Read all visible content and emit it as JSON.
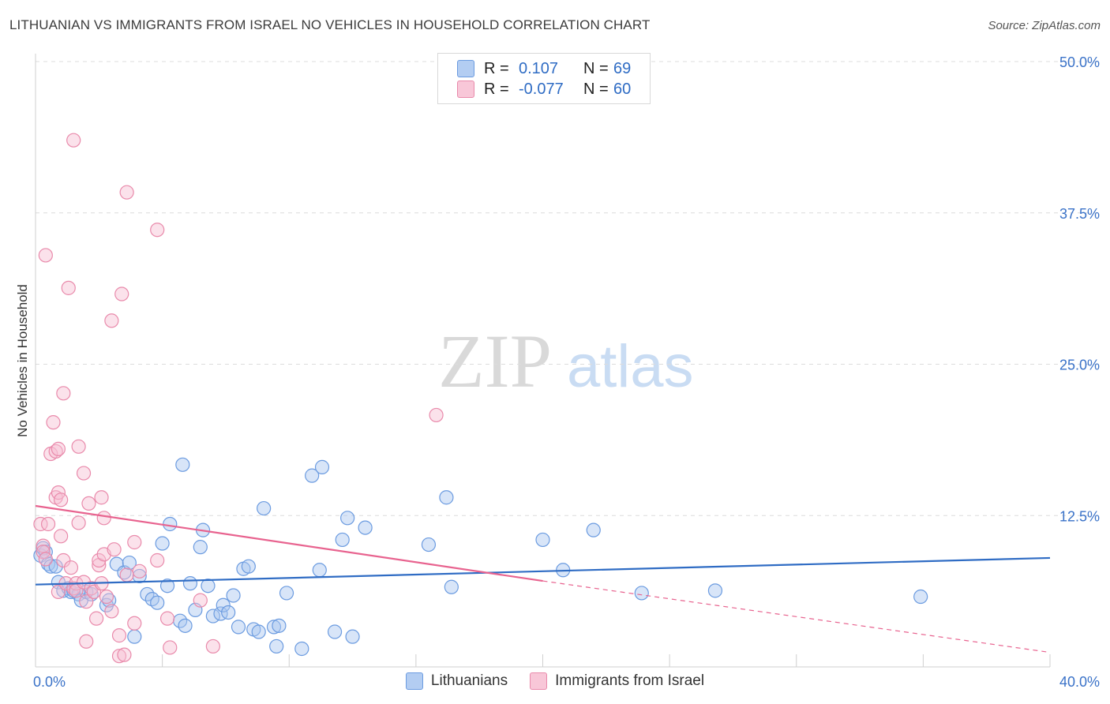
{
  "title": "LITHUANIAN VS IMMIGRANTS FROM ISRAEL NO VEHICLES IN HOUSEHOLD CORRELATION CHART",
  "source": "Source: ZipAtlas.com",
  "watermark": {
    "zip": "ZIP",
    "atlas": "atlas"
  },
  "legend": {
    "r_label": "R =",
    "n_label": "N =",
    "series": [
      {
        "name": "Lithuanians",
        "r": "0.107",
        "n": "69",
        "fill": "#a9c6f0",
        "stroke": "#6b9be0"
      },
      {
        "name": "Immigrants from Israel",
        "r": "-0.077",
        "n": "60",
        "fill": "#f7bfd2",
        "stroke": "#e98aab"
      }
    ]
  },
  "colors": {
    "blue": "#2f6cc4",
    "pink": "#e8638f",
    "grid": "#dcdcdc",
    "tick_text": "#3a72c8"
  },
  "chart_data": {
    "type": "scatter",
    "title": "LITHUANIAN VS IMMIGRANTS FROM ISRAEL NO VEHICLES IN HOUSEHOLD CORRELATION CHART",
    "xlabel": "",
    "ylabel": "No Vehicles in Household",
    "xlim": [
      0,
      40
    ],
    "ylim": [
      0,
      50
    ],
    "x_tick_labels": [
      "0.0%",
      "40.0%"
    ],
    "y_ticks": [
      12.5,
      25.0,
      37.5,
      50.0
    ],
    "y_tick_labels": [
      "12.5%",
      "25.0%",
      "37.5%",
      "50.0%"
    ],
    "series": [
      {
        "name": "Lithuanians",
        "trend": {
          "x0": 0,
          "y0": 6.8,
          "x1": 40,
          "y1": 9.0
        },
        "points": [
          [
            0.2,
            9.2
          ],
          [
            0.3,
            9.8
          ],
          [
            0.4,
            9.5
          ],
          [
            0.5,
            8.5
          ],
          [
            0.6,
            8.3
          ],
          [
            0.8,
            8.3
          ],
          [
            0.9,
            7.0
          ],
          [
            1.1,
            6.3
          ],
          [
            1.3,
            6.5
          ],
          [
            1.4,
            6.2
          ],
          [
            1.5,
            6.3
          ],
          [
            1.7,
            6.0
          ],
          [
            1.8,
            5.5
          ],
          [
            2.0,
            6.2
          ],
          [
            2.2,
            6.0
          ],
          [
            2.8,
            5.1
          ],
          [
            2.9,
            5.5
          ],
          [
            3.2,
            8.5
          ],
          [
            3.5,
            7.8
          ],
          [
            3.7,
            8.6
          ],
          [
            3.9,
            2.5
          ],
          [
            4.1,
            7.5
          ],
          [
            4.4,
            6.0
          ],
          [
            4.6,
            5.6
          ],
          [
            4.8,
            5.3
          ],
          [
            5.0,
            10.2
          ],
          [
            5.2,
            6.7
          ],
          [
            5.3,
            11.8
          ],
          [
            5.7,
            3.8
          ],
          [
            5.8,
            16.7
          ],
          [
            5.9,
            3.4
          ],
          [
            6.1,
            6.9
          ],
          [
            6.3,
            4.7
          ],
          [
            6.5,
            9.9
          ],
          [
            6.6,
            11.3
          ],
          [
            6.8,
            6.7
          ],
          [
            7.0,
            4.2
          ],
          [
            7.3,
            4.4
          ],
          [
            7.4,
            5.1
          ],
          [
            7.6,
            4.5
          ],
          [
            7.8,
            5.9
          ],
          [
            8.0,
            3.3
          ],
          [
            8.2,
            8.1
          ],
          [
            8.4,
            8.3
          ],
          [
            8.6,
            3.1
          ],
          [
            8.8,
            2.9
          ],
          [
            9.0,
            13.1
          ],
          [
            9.4,
            3.3
          ],
          [
            9.5,
            1.7
          ],
          [
            9.6,
            3.4
          ],
          [
            9.9,
            6.1
          ],
          [
            10.5,
            1.5
          ],
          [
            10.9,
            15.8
          ],
          [
            11.3,
            16.5
          ],
          [
            11.2,
            8.0
          ],
          [
            11.8,
            2.9
          ],
          [
            12.1,
            10.5
          ],
          [
            12.5,
            2.5
          ],
          [
            12.3,
            12.3
          ],
          [
            13.0,
            11.5
          ],
          [
            15.5,
            10.1
          ],
          [
            16.2,
            14.0
          ],
          [
            16.4,
            6.6
          ],
          [
            20.0,
            10.5
          ],
          [
            20.8,
            8.0
          ],
          [
            22.0,
            11.3
          ],
          [
            23.9,
            6.1
          ],
          [
            26.8,
            6.3
          ],
          [
            34.9,
            5.8
          ]
        ]
      },
      {
        "name": "Immigrants from Israel",
        "trend": {
          "x0": 0,
          "y0": 13.3,
          "x1": 20,
          "y1": 7.1,
          "dash_x1": 40,
          "dash_y1": 1.2
        },
        "points": [
          [
            0.2,
            11.8
          ],
          [
            0.3,
            10.0
          ],
          [
            0.3,
            9.5
          ],
          [
            0.4,
            8.9
          ],
          [
            0.4,
            34.0
          ],
          [
            0.5,
            11.8
          ],
          [
            0.6,
            17.6
          ],
          [
            0.7,
            20.2
          ],
          [
            0.8,
            17.8
          ],
          [
            0.8,
            14.0
          ],
          [
            0.9,
            18.0
          ],
          [
            0.9,
            14.4
          ],
          [
            0.9,
            6.2
          ],
          [
            1.0,
            13.8
          ],
          [
            1.0,
            10.8
          ],
          [
            1.1,
            8.8
          ],
          [
            1.1,
            22.6
          ],
          [
            1.2,
            6.9
          ],
          [
            1.3,
            31.3
          ],
          [
            1.4,
            8.2
          ],
          [
            1.5,
            6.5
          ],
          [
            1.5,
            43.5
          ],
          [
            1.6,
            6.9
          ],
          [
            1.6,
            6.3
          ],
          [
            1.7,
            18.2
          ],
          [
            1.7,
            11.9
          ],
          [
            1.9,
            16.0
          ],
          [
            1.9,
            7.0
          ],
          [
            2.0,
            5.4
          ],
          [
            2.0,
            2.1
          ],
          [
            2.1,
            13.5
          ],
          [
            2.2,
            6.5
          ],
          [
            2.3,
            6.2
          ],
          [
            2.4,
            4.0
          ],
          [
            2.5,
            8.4
          ],
          [
            2.5,
            8.8
          ],
          [
            2.6,
            14.0
          ],
          [
            2.7,
            9.3
          ],
          [
            2.7,
            12.3
          ],
          [
            2.8,
            5.8
          ],
          [
            2.6,
            6.9
          ],
          [
            3.0,
            28.6
          ],
          [
            3.0,
            4.6
          ],
          [
            3.1,
            9.7
          ],
          [
            3.3,
            0.9
          ],
          [
            3.3,
            2.6
          ],
          [
            3.4,
            30.8
          ],
          [
            3.5,
            1.0
          ],
          [
            3.6,
            7.6
          ],
          [
            3.6,
            39.2
          ],
          [
            3.9,
            3.6
          ],
          [
            3.9,
            10.3
          ],
          [
            4.1,
            7.9
          ],
          [
            4.8,
            36.1
          ],
          [
            4.8,
            8.8
          ],
          [
            5.2,
            4.0
          ],
          [
            5.3,
            1.6
          ],
          [
            6.5,
            5.5
          ],
          [
            7.0,
            1.7
          ],
          [
            15.8,
            20.8
          ]
        ]
      }
    ]
  }
}
